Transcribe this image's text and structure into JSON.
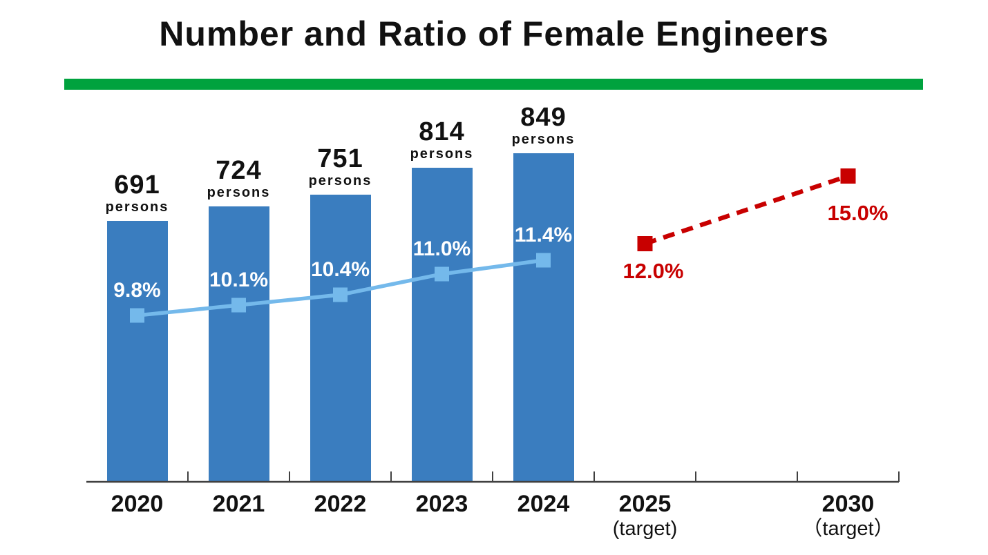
{
  "title": "Number and Ratio of Female Engineers",
  "colors": {
    "title_text": "#111111",
    "divider_green": "#00A23E",
    "bar_blue": "#3A7DBF",
    "ratio_line_blue": "#74B9EB",
    "target_red": "#C80000",
    "axis": "#404040",
    "bar_pct_text": "#ffffff",
    "value_text": "#111111"
  },
  "chart_data": {
    "type": "bar",
    "title": "Number and Ratio of Female Engineers",
    "categories": [
      "2020",
      "2021",
      "2022",
      "2023",
      "2024",
      "2025",
      "2030"
    ],
    "x_axis_labels": [
      {
        "label": "2020",
        "sub": ""
      },
      {
        "label": "2021",
        "sub": ""
      },
      {
        "label": "2022",
        "sub": ""
      },
      {
        "label": "2023",
        "sub": ""
      },
      {
        "label": "2024",
        "sub": ""
      },
      {
        "label": "2025",
        "sub": "(target)"
      },
      {
        "label": "2030",
        "sub": "（target）"
      }
    ],
    "series": [
      {
        "name": "number-of-female-engineers",
        "type": "bar",
        "unit_label": "persons",
        "categories": [
          "2020",
          "2021",
          "2022",
          "2023",
          "2024"
        ],
        "values": [
          691,
          724,
          751,
          814,
          849
        ],
        "value_labels": [
          "691",
          "724",
          "751",
          "814",
          "849"
        ]
      },
      {
        "name": "ratio-of-female-engineers",
        "type": "line",
        "unit": "%",
        "categories": [
          "2020",
          "2021",
          "2022",
          "2023",
          "2024"
        ],
        "values": [
          9.8,
          10.1,
          10.4,
          11.0,
          11.4
        ],
        "value_labels": [
          "9.8%",
          "10.1%",
          "10.4%",
          "11.0%",
          "11.4%"
        ]
      },
      {
        "name": "ratio-target",
        "type": "dashed-line",
        "unit": "%",
        "categories": [
          "2025",
          "2030"
        ],
        "values": [
          12.0,
          15.0
        ],
        "value_labels": [
          "12.0%",
          "15.0%"
        ]
      }
    ],
    "grid": false,
    "legend_position": "none",
    "ylim_persons": [
      0,
      900
    ],
    "ylim_ratio_percent": [
      9,
      16
    ]
  }
}
